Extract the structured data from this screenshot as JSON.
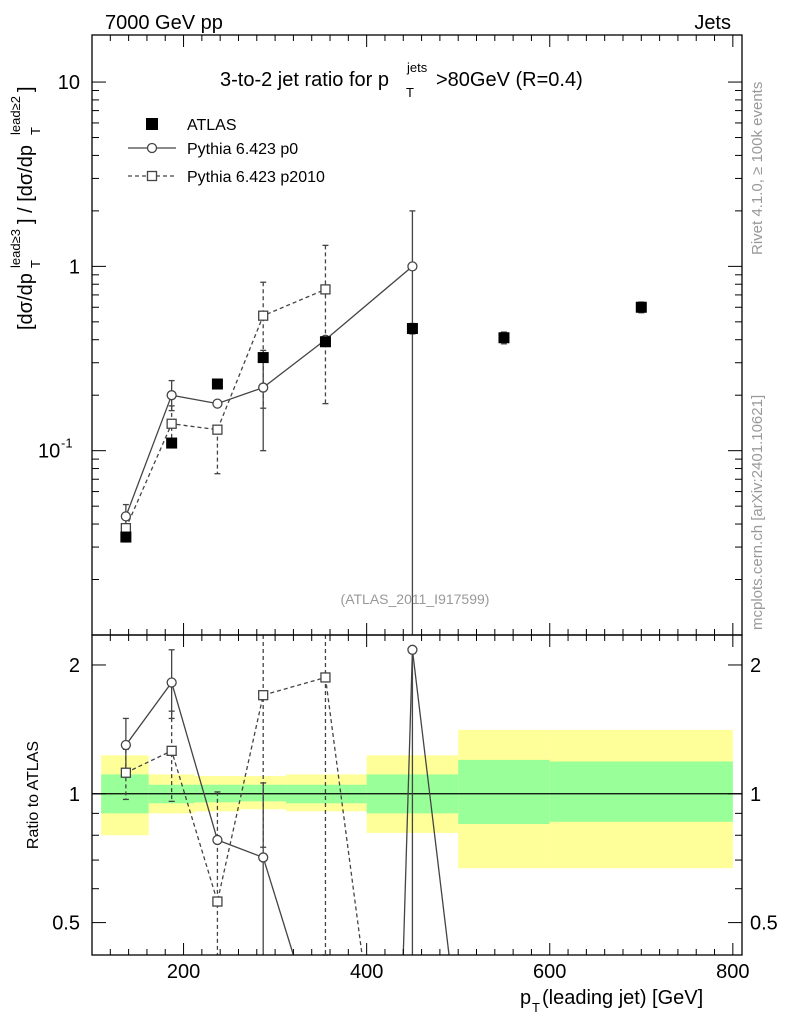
{
  "header": {
    "energy_label": "7000 GeV pp",
    "category_label": "Jets"
  },
  "side_labels": {
    "rivet": "Rivet 4.1.0, ≥ 100k events",
    "mcplots": "mcplots.cern.ch [arXiv:2401.10621]"
  },
  "chart_data": {
    "type": "scatter",
    "title": "3-to-2 jet ratio for p_T^jets >80GeV (R=0.4)",
    "analysis_id": "(ATLAS_2011_I917599)",
    "xlabel": "p_T(leading jet) [GeV]",
    "ylabel_main": "[dσ/dp_T^lead≥3] / [dσ/dp_T^lead≥2]",
    "ylabel_ratio": "Ratio to ATLAS",
    "xlim": [
      100,
      810
    ],
    "ylim_main": [
      0.01,
      18
    ],
    "ylim_ratio": [
      0.42,
      2.35
    ],
    "x_ticks": [
      200,
      400,
      600,
      800
    ],
    "main_tick_labels": [
      "10^-1",
      "1",
      "10"
    ],
    "ratio_ticks": [
      0.5,
      1,
      2
    ],
    "legend": {
      "position": "top-left",
      "entries": [
        "ATLAS",
        "Pythia 6.423 p0",
        "Pythia 6.423 p2010"
      ]
    },
    "series": [
      {
        "name": "ATLAS",
        "style": "filled-square",
        "x": [
          137,
          187,
          237,
          287,
          355,
          450,
          550,
          700
        ],
        "y": [
          0.034,
          0.11,
          0.23,
          0.32,
          0.39,
          0.46,
          0.41,
          0.6
        ],
        "yerr": [
          0.002,
          0.006,
          0.012,
          0.015,
          0.02,
          0.03,
          0.03,
          0.04
        ]
      },
      {
        "name": "Pythia 6.423 p0",
        "style": "open-circle-solid",
        "x": [
          137,
          187,
          237,
          287,
          355,
          450
        ],
        "y": [
          0.044,
          0.2,
          0.18,
          0.22,
          0.4,
          1.0
        ],
        "yerr_low": [
          0.006,
          0.035,
          0.0,
          0.12,
          0.0,
          1.0
        ],
        "yerr_high": [
          0.007,
          0.04,
          0.0,
          0.13,
          0.0,
          1.0
        ]
      },
      {
        "name": "Pythia 6.423 p2010",
        "style": "open-square-dashed",
        "x": [
          137,
          187,
          237,
          287,
          355
        ],
        "y": [
          0.038,
          0.14,
          0.13,
          0.54,
          0.75
        ],
        "yerr_low": [
          0.005,
          0.03,
          0.055,
          0.37,
          0.57
        ],
        "yerr_high": [
          0.005,
          0.035,
          0.0,
          0.28,
          0.55
        ]
      }
    ],
    "ratio_series": [
      {
        "name": "Pythia 6.423 p0",
        "x": [
          137,
          187,
          237,
          287,
          450
        ],
        "y": [
          1.3,
          1.82,
          0.78,
          0.71,
          2.17
        ],
        "yerr_low": [
          0.17,
          0.32,
          0.0,
          0.4,
          2.0
        ],
        "yerr_high": [
          0.2,
          0.35,
          0.0,
          0.35,
          0.0
        ],
        "offscale_segments": [
          [
            [
              287,
              0.71
            ],
            [
              320,
              0.3
            ]
          ],
          [
            [
              440,
              0.3
            ],
            [
              450,
              2.17
            ]
          ],
          [
            [
              450,
              2.17
            ],
            [
              490,
              0.3
            ]
          ]
        ]
      },
      {
        "name": "Pythia 6.423 p2010",
        "x": [
          137,
          187,
          237,
          287,
          355
        ],
        "y": [
          1.12,
          1.26,
          0.56,
          1.7,
          1.87
        ],
        "yerr_low": [
          0.15,
          0.3,
          0.2,
          0.95,
          1.45
        ],
        "yerr_high": [
          0.15,
          0.3,
          0.45,
          1.3,
          1.0
        ],
        "offscale_segments": [
          [
            [
              355,
              1.87
            ],
            [
              395,
              0.3
            ]
          ]
        ]
      }
    ],
    "uncertainty_bands": {
      "x_edges": [
        110,
        162,
        212,
        262,
        312,
        400,
        500,
        600,
        800
      ],
      "yellow_low": [
        0.8,
        0.9,
        0.91,
        0.92,
        0.91,
        0.81,
        0.67,
        0.67,
        0.68
      ],
      "yellow_high": [
        1.23,
        1.11,
        1.1,
        1.1,
        1.11,
        1.23,
        1.41,
        1.41,
        1.4
      ],
      "green_low": [
        0.9,
        0.95,
        0.955,
        0.96,
        0.95,
        0.9,
        0.85,
        0.86,
        0.86
      ],
      "green_high": [
        1.11,
        1.05,
        1.05,
        1.05,
        1.05,
        1.11,
        1.2,
        1.19,
        1.19
      ]
    }
  }
}
